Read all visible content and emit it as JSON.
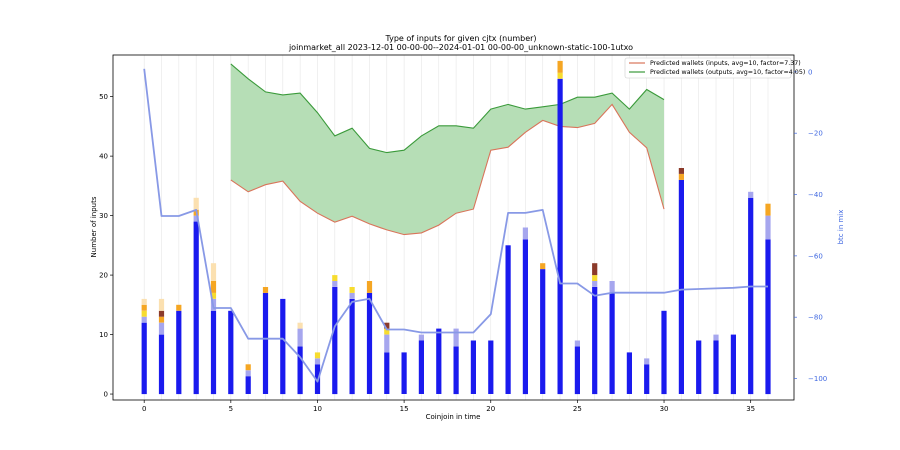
{
  "chart_data": {
    "type": "bar",
    "title": "Type of inputs for given cjtx (number)",
    "subtitle": "joinmarket_all 2023-12-01 00-00-00--2024-01-01 00-00-00_unknown-static-100-1utxo",
    "xlabel": "Coinjoin in time",
    "ylabel": "Number of inputs",
    "y2label": "btc in mix",
    "xlim": [
      -1.8,
      37.5
    ],
    "ylim": [
      -1,
      57
    ],
    "y2lim": [
      -107,
      5.5
    ],
    "xticks": [
      0,
      5,
      10,
      15,
      20,
      25,
      30,
      35
    ],
    "yticks": [
      0,
      10,
      20,
      30,
      40,
      50
    ],
    "y2ticks": [
      0,
      -20,
      -40,
      -60,
      -80,
      -100
    ],
    "grid": "vertical",
    "legend_position": "top-right",
    "colors": {
      "main_bar": "#1a1aee",
      "light_bar": "#a6a6ee",
      "orange": "#f5a623",
      "yellow": "#f7dc2e",
      "brown": "#8b3a2a",
      "cream": "#fbe0b0",
      "fill_green": "#b2dcb2",
      "line_green": "#3a9a3a",
      "line_orange": "#d9745a",
      "btc_line": "#8899e6",
      "right_axis": "#4169e1"
    },
    "x": [
      0,
      1,
      2,
      3,
      4,
      5,
      6,
      7,
      8,
      9,
      10,
      11,
      12,
      13,
      14,
      15,
      16,
      17,
      18,
      19,
      20,
      21,
      22,
      23,
      24,
      25,
      26,
      27,
      28,
      29,
      30,
      31,
      32,
      33,
      34,
      35,
      36
    ],
    "series": [
      {
        "role": "main",
        "values": [
          12,
          10,
          14,
          29,
          14,
          14,
          3,
          17,
          16,
          8,
          5,
          18,
          16,
          17,
          7,
          7,
          9,
          11,
          8,
          9,
          9,
          25,
          26,
          21,
          53,
          8,
          18,
          17,
          7,
          5,
          14,
          36,
          9,
          9,
          10,
          33,
          26
        ]
      },
      {
        "role": "light",
        "values": [
          1,
          2,
          0,
          1,
          2,
          0,
          1,
          0,
          0,
          3,
          1,
          1,
          1,
          0,
          3,
          0,
          1,
          0,
          3,
          0,
          0,
          0,
          2,
          0,
          0,
          1,
          1,
          2,
          0,
          1,
          0,
          0,
          0,
          1,
          0,
          1,
          4
        ]
      },
      {
        "role": "yellow",
        "values": [
          1,
          0,
          0,
          0,
          1,
          0,
          0,
          0,
          0,
          0,
          1,
          1,
          1,
          0,
          1,
          0,
          0,
          0,
          0,
          0,
          0,
          0,
          0,
          0,
          1,
          0,
          1,
          0,
          0,
          0,
          0,
          0,
          0,
          0,
          0,
          0,
          0
        ]
      },
      {
        "role": "orange",
        "values": [
          1,
          1,
          1,
          1,
          2,
          0,
          1,
          1,
          0,
          0,
          0,
          0,
          0,
          2,
          0,
          0,
          0,
          0,
          0,
          0,
          0,
          0,
          0,
          1,
          2,
          0,
          0,
          0,
          0,
          0,
          0,
          1,
          0,
          0,
          0,
          0,
          2
        ]
      },
      {
        "role": "brown",
        "values": [
          0,
          1,
          0,
          0,
          0,
          0,
          0,
          0,
          0,
          0,
          0,
          0,
          0,
          0,
          1,
          0,
          0,
          0,
          0,
          0,
          0,
          0,
          0,
          0,
          0,
          0,
          2,
          0,
          0,
          0,
          0,
          1,
          0,
          0,
          0,
          0,
          0
        ]
      },
      {
        "role": "cream",
        "values": [
          1,
          2,
          0,
          2,
          3,
          0,
          0,
          0,
          0,
          1,
          0,
          0,
          0,
          0,
          0,
          0,
          0,
          0,
          0,
          0,
          0,
          0,
          0,
          0,
          0,
          0,
          0,
          0,
          0,
          0,
          0,
          0,
          0,
          0,
          0,
          0,
          0
        ]
      }
    ],
    "wallet_band": {
      "x": [
        5,
        6,
        7,
        8,
        9,
        10,
        11,
        12,
        13,
        14,
        15,
        16,
        17,
        18,
        19,
        20,
        21,
        22,
        23,
        24,
        25,
        26,
        27,
        28,
        29,
        30
      ],
      "outputs": [
        55.5,
        53,
        50.8,
        50.3,
        50.6,
        47.3,
        43.4,
        44.7,
        41.3,
        40.6,
        41,
        43.4,
        45.1,
        45.1,
        44.7,
        47.9,
        48.7,
        47.9,
        48.3,
        48.7,
        49.9,
        49.9,
        50.6,
        47.9,
        51.2,
        49.5
      ],
      "inputs": [
        36,
        34,
        35.2,
        35.8,
        32.4,
        30.4,
        28.9,
        29.9,
        28.6,
        27.6,
        26.8,
        27.1,
        28.4,
        30.4,
        31.1,
        41,
        41.5,
        44,
        46,
        45,
        44.8,
        45.5,
        48.7,
        44,
        41.4,
        31.1
      ]
    },
    "btc_in_mix": {
      "x": [
        0,
        1,
        2,
        3,
        4,
        5,
        6,
        7,
        8,
        9,
        10,
        11,
        12,
        13,
        14,
        15,
        16,
        17,
        18,
        19,
        20,
        21,
        22,
        23,
        24,
        25,
        26,
        27,
        28,
        29,
        30,
        31,
        32,
        33,
        34,
        35,
        36
      ],
      "values": [
        1,
        -47,
        -47,
        -45,
        -77,
        -77,
        -87,
        -87,
        -87,
        -93,
        -101,
        -83,
        -75,
        -74,
        -84,
        -84,
        -85,
        -85,
        -85,
        -85,
        -79,
        -46,
        -46,
        -45,
        -69,
        -69,
        -73,
        -72,
        -72,
        -72,
        -72,
        -71,
        -70.8,
        -70.6,
        -70.4,
        -70,
        -70
      ]
    },
    "legend": [
      {
        "label": "Predicted wallets (inputs, avg=10, factor=7.37)",
        "color": "#d9745a"
      },
      {
        "label": "Predicted wallets (outputs, avg=10, factor=4.05)",
        "color": "#3a9a3a"
      }
    ]
  }
}
